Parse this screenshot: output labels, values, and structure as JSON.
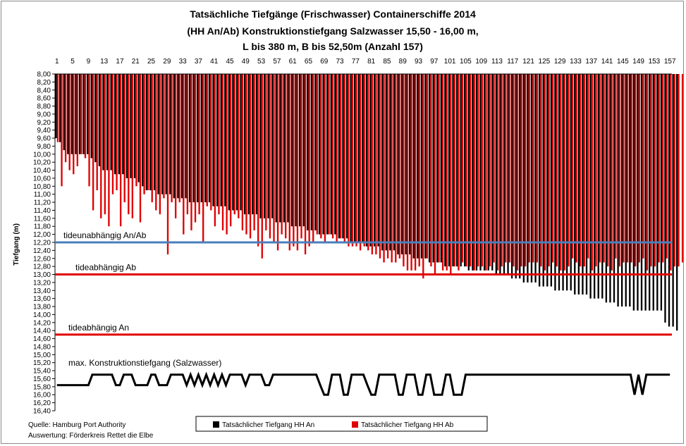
{
  "chart_data": {
    "type": "bar",
    "title_lines": [
      "Tatsächliche Tiefgänge (Frischwasser) Containerschiffe 2014",
      "(HH An/Ab) Konstruktionstiefgang Salzwasser 15,50 - 16,00 m,",
      "L bis 380 m, B bis 52,50m  (Anzahl 157)"
    ],
    "ylabel": "Tiefgang (m)",
    "ylim": [
      8.0,
      16.4
    ],
    "y_inverted": true,
    "ytick_step": 0.2,
    "x_count": 157,
    "x_ticks": [
      1,
      5,
      9,
      13,
      17,
      21,
      25,
      29,
      33,
      37,
      41,
      45,
      49,
      53,
      57,
      61,
      65,
      69,
      73,
      77,
      81,
      85,
      89,
      93,
      97,
      101,
      105,
      109,
      113,
      117,
      121,
      125,
      129,
      133,
      137,
      141,
      145,
      149,
      153,
      157
    ],
    "x_axis_position": "top",
    "legend_position": "bottom",
    "series": [
      {
        "name": "Tatsächlicher Tiefgang HH An",
        "color": "#000000",
        "values": [
          9.6,
          9.7,
          9.9,
          10.0,
          10.0,
          10.0,
          10.0,
          10.0,
          10.0,
          10.1,
          10.2,
          10.3,
          10.4,
          10.4,
          10.4,
          10.5,
          10.5,
          10.5,
          10.6,
          10.6,
          10.6,
          10.7,
          10.8,
          10.9,
          10.9,
          10.9,
          11.0,
          11.0,
          11.0,
          11.0,
          11.1,
          11.1,
          11.1,
          11.1,
          11.2,
          11.2,
          11.2,
          11.2,
          11.2,
          11.2,
          11.3,
          11.3,
          11.3,
          11.3,
          11.4,
          11.4,
          11.4,
          11.4,
          11.5,
          11.5,
          11.5,
          11.5,
          11.6,
          11.6,
          11.6,
          11.6,
          11.7,
          11.7,
          11.7,
          11.7,
          11.8,
          11.8,
          11.8,
          11.8,
          11.9,
          11.9,
          11.9,
          12.0,
          12.0,
          12.0,
          12.0,
          12.0,
          12.1,
          12.1,
          12.1,
          12.2,
          12.2,
          12.2,
          12.2,
          12.3,
          12.3,
          12.3,
          12.3,
          12.4,
          12.4,
          12.4,
          12.4,
          12.5,
          12.5,
          12.5,
          12.5,
          12.6,
          12.6,
          12.6,
          12.6,
          12.7,
          12.7,
          12.7,
          12.7,
          12.8,
          12.8,
          12.8,
          12.8,
          12.8,
          12.8,
          12.9,
          12.9,
          12.9,
          12.9,
          12.9,
          12.9,
          12.9,
          13.0,
          13.0,
          13.0,
          13.0,
          13.1,
          13.1,
          13.1,
          13.2,
          13.2,
          13.2,
          13.2,
          13.3,
          13.3,
          13.3,
          13.3,
          13.4,
          13.4,
          13.4,
          13.4,
          13.4,
          13.5,
          13.5,
          13.5,
          13.5,
          13.6,
          13.6,
          13.6,
          13.6,
          13.7,
          13.7,
          13.7,
          13.8,
          13.8,
          13.8,
          13.8,
          13.9,
          13.9,
          13.9,
          13.9,
          13.9,
          13.9,
          13.9,
          13.9,
          14.2,
          14.3,
          14.3,
          14.4
        ]
      },
      {
        "name": "Tatsächlicher Tiefgang HH Ab",
        "color": "#e00000",
        "values": [
          9.7,
          10.8,
          10.2,
          10.4,
          10.5,
          10.3,
          10.0,
          10.1,
          10.8,
          11.4,
          10.9,
          11.6,
          11.5,
          11.8,
          11.0,
          10.9,
          11.8,
          11.2,
          11.5,
          11.6,
          10.8,
          11.7,
          11.0,
          10.9,
          11.2,
          11.4,
          11.5,
          11.1,
          12.5,
          11.2,
          11.6,
          11.2,
          12.0,
          11.5,
          11.9,
          11.7,
          11.5,
          12.2,
          11.3,
          11.4,
          11.8,
          11.5,
          11.9,
          12.0,
          11.8,
          11.5,
          11.6,
          11.9,
          12.0,
          12.1,
          11.9,
          12.3,
          12.6,
          11.9,
          12.1,
          12.2,
          12.4,
          12.0,
          12.1,
          12.4,
          12.3,
          12.4,
          12.1,
          12.5,
          12.3,
          12.2,
          12.0,
          12.1,
          12.2,
          12.0,
          12.1,
          12.2,
          12.1,
          12.2,
          12.3,
          12.3,
          12.3,
          12.4,
          12.3,
          12.4,
          12.5,
          12.5,
          12.6,
          12.7,
          12.6,
          12.7,
          12.7,
          12.6,
          12.8,
          12.9,
          12.9,
          12.9,
          12.8,
          13.1,
          12.6,
          12.8,
          13.0,
          12.7,
          12.9,
          12.9,
          13.0,
          12.8,
          12.9,
          12.7,
          12.8,
          12.8,
          12.9,
          12.8,
          12.8,
          12.9,
          12.8,
          12.7,
          12.9,
          12.8,
          12.7,
          12.7,
          12.8,
          12.9,
          12.8,
          12.8,
          12.7,
          12.7,
          12.7,
          12.8,
          12.9,
          12.8,
          12.7,
          12.8,
          12.9,
          12.9,
          12.8,
          12.6,
          12.7,
          12.8,
          12.8,
          12.6,
          12.9,
          12.8,
          12.7,
          12.7,
          12.8,
          12.9,
          12.6,
          12.8,
          12.7,
          12.7,
          12.7,
          12.8,
          12.7,
          12.6,
          12.9,
          12.8,
          12.8,
          12.7,
          12.7,
          12.6,
          12.9,
          12.8,
          12.8,
          12.7,
          12.7
        ]
      },
      {
        "name": "max. Konstruktionstiefgang (Salzwasser)",
        "type": "line",
        "color": "#000000",
        "values": [
          15.76,
          15.76,
          15.76,
          15.76,
          15.76,
          15.76,
          15.76,
          15.76,
          15.76,
          15.5,
          15.5,
          15.5,
          15.5,
          15.5,
          15.5,
          15.76,
          15.76,
          15.5,
          15.5,
          15.5,
          15.76,
          15.76,
          15.76,
          15.76,
          15.5,
          15.5,
          15.76,
          15.76,
          15.76,
          15.5,
          15.5,
          15.5,
          15.5,
          15.76,
          15.5,
          15.76,
          15.5,
          15.76,
          15.5,
          15.76,
          15.5,
          15.76,
          15.5,
          15.76,
          15.5,
          15.5,
          15.5,
          15.5,
          15.76,
          15.5,
          15.5,
          15.5,
          15.5,
          15.76,
          15.76,
          15.5,
          15.5,
          15.5,
          15.5,
          15.5,
          15.5,
          15.5,
          15.5,
          15.5,
          15.5,
          15.5,
          15.5,
          15.76,
          16.0,
          16.0,
          15.5,
          15.5,
          15.5,
          16.0,
          16.0,
          15.5,
          15.5,
          15.5,
          15.5,
          15.76,
          16.0,
          16.0,
          15.5,
          15.5,
          15.5,
          15.5,
          15.5,
          16.0,
          16.0,
          15.5,
          15.5,
          15.5,
          16.0,
          16.0,
          15.5,
          15.5,
          16.0,
          16.0,
          16.0,
          15.5,
          15.5,
          16.0,
          16.0,
          16.0,
          15.5,
          15.5,
          15.5,
          15.5,
          15.5,
          15.5,
          15.5,
          15.5,
          15.5,
          15.5,
          15.5,
          15.5,
          15.5,
          15.5,
          15.5,
          15.5,
          15.5,
          15.5,
          15.5,
          15.5,
          15.5,
          15.5,
          15.5,
          15.5,
          15.5,
          15.5,
          15.5,
          15.5,
          15.5,
          15.5,
          15.5,
          15.5,
          15.5,
          15.5,
          15.5,
          15.5,
          15.5,
          15.5,
          15.5,
          15.5,
          15.5,
          15.5,
          15.5,
          16.0,
          15.5,
          16.0,
          15.5,
          15.5,
          15.5,
          15.5,
          15.5,
          15.5,
          15.5
        ]
      }
    ],
    "reference_lines": [
      {
        "label": "tideunabhängig An/Ab",
        "value": 12.2,
        "color": "#4a7ebb"
      },
      {
        "label": "tideabhängig Ab",
        "value": 13.0,
        "color": "#e00000"
      },
      {
        "label": "tideabhängig An",
        "value": 14.5,
        "color": "#e00000"
      }
    ],
    "annotations": {
      "line_label": "max. Konstruktionstiefgang (Salzwasser)"
    },
    "grid": false
  },
  "source": {
    "line1": "Quelle: Hamburg Port Authority",
    "line2": "Auswertung: Förderkreis Rettet die Elbe"
  }
}
